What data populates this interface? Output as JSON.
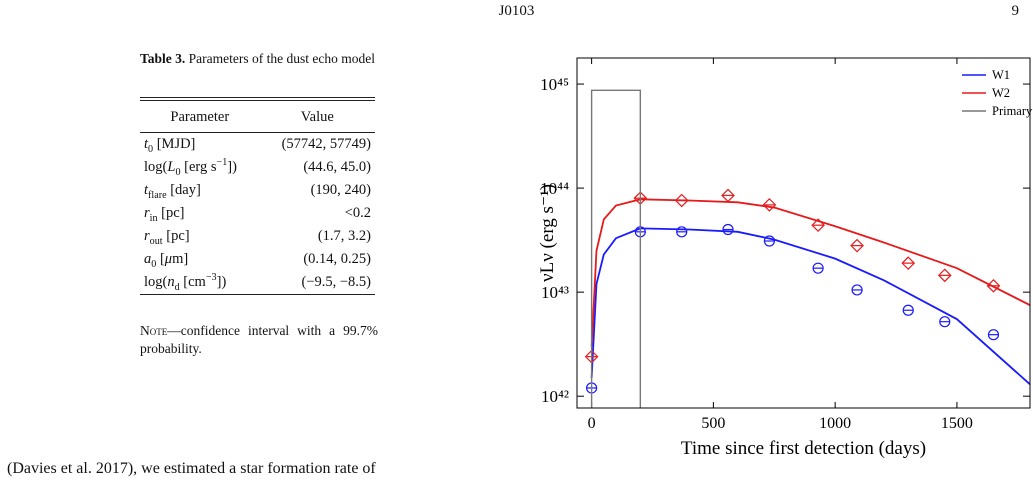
{
  "header": {
    "title": "J0103",
    "page": "9"
  },
  "table": {
    "caption": [
      {
        "text": "Table 3.",
        "style": "bold"
      },
      {
        "text": " Parameters of the dust echo model"
      }
    ],
    "columns": [
      "Parameter",
      "Value"
    ],
    "rows": [
      [
        [
          {
            "text": "t",
            "style": "italic"
          },
          {
            "text": "0",
            "style": "sub"
          },
          {
            "text": " [MJD]"
          }
        ],
        "(57742, 57749)"
      ],
      [
        [
          {
            "text": "log("
          },
          {
            "text": "L",
            "style": "italic"
          },
          {
            "text": "0",
            "style": "sub"
          },
          {
            "text": " [erg s"
          },
          {
            "text": "−1",
            "style": "sup"
          },
          {
            "text": "])"
          }
        ],
        "(44.6, 45.0)"
      ],
      [
        [
          {
            "text": "t",
            "style": "italic"
          },
          {
            "text": "flare",
            "style": "sub"
          },
          {
            "text": " [day]"
          }
        ],
        "(190, 240)"
      ],
      [
        [
          {
            "text": "r",
            "style": "italic"
          },
          {
            "text": "in",
            "style": "sub"
          },
          {
            "text": " [pc]"
          }
        ],
        "<0.2"
      ],
      [
        [
          {
            "text": "r",
            "style": "italic"
          },
          {
            "text": "out",
            "style": "sub"
          },
          {
            "text": " [pc]"
          }
        ],
        "(1.7, 3.2)"
      ],
      [
        [
          {
            "text": "a",
            "style": "italic"
          },
          {
            "text": "0",
            "style": "sub"
          },
          {
            "text": " ["
          },
          {
            "text": "μ",
            "style": "italic"
          },
          {
            "text": "m]"
          }
        ],
        "(0.14, 0.25)"
      ],
      [
        [
          {
            "text": "log("
          },
          {
            "text": "n",
            "style": "italic"
          },
          {
            "text": "d",
            "style": "sub"
          },
          {
            "text": " [cm"
          },
          {
            "text": "−3",
            "style": "sup"
          },
          {
            "text": "])"
          }
        ],
        "(−9.5, −8.5)"
      ]
    ],
    "note": [
      {
        "text": "Note",
        "style": "small-caps"
      },
      {
        "text": "—confidence interval with a 99.7% probability."
      }
    ]
  },
  "chart_data": {
    "type": "line",
    "xlabel": "Time since first detection (days)",
    "ylabel": "νLν (erg s⁻¹)",
    "xlim": [
      -60,
      1800
    ],
    "xticks": [
      0,
      500,
      1000,
      1500
    ],
    "ylim": [
      7.7e+41,
      1.78e+45
    ],
    "yscale": "log",
    "yticks": [
      {
        "value": 1e+42,
        "label": "10⁴²"
      },
      {
        "value": 1e+43,
        "label": "10⁴³"
      },
      {
        "value": 1e+44,
        "label": "10⁴⁴"
      },
      {
        "value": 1e+45,
        "label": "10⁴⁵"
      }
    ],
    "legend": "upper right",
    "series": [
      {
        "name": "W1",
        "color": "#1a1aff",
        "marker": "circle",
        "x": [
          0,
          20,
          50,
          100,
          200,
          400,
          600,
          750,
          1000,
          1200,
          1500,
          1800
        ],
        "values": [
          1.5e+42,
          1.2e+43,
          2.3e+43,
          3.3e+43,
          4.1e+43,
          4e+43,
          3.8e+43,
          3.2e+43,
          2.1e+43,
          1.3e+43,
          5.5e+42,
          1.3e+42
        ],
        "obs_x": [
          0,
          200,
          370,
          560,
          730,
          930,
          1090,
          1300,
          1450,
          1650
        ],
        "obs_values": [
          1.2e+42,
          3.8e+43,
          3.8e+43,
          4e+43,
          3.1e+43,
          1.7e+43,
          1.05e+43,
          6.7e+42,
          5.2e+42,
          3.9e+42
        ]
      },
      {
        "name": "W2",
        "color": "#e8191a",
        "marker": "diamond",
        "x": [
          0,
          20,
          50,
          100,
          200,
          400,
          600,
          750,
          1000,
          1200,
          1500,
          1800
        ],
        "values": [
          3e+42,
          2.5e+43,
          5e+43,
          6.8e+43,
          7.8e+43,
          7.6e+43,
          7.3e+43,
          6.5e+43,
          4.3e+43,
          3e+43,
          1.7e+43,
          7.5e+42
        ],
        "obs_x": [
          0,
          200,
          370,
          560,
          730,
          930,
          1090,
          1300,
          1450,
          1650
        ],
        "obs_values": [
          2.4e+42,
          8e+43,
          7.6e+43,
          8.5e+43,
          6.9e+43,
          4.4e+43,
          2.8e+43,
          1.9e+43,
          1.45e+43,
          1.15e+43
        ]
      },
      {
        "name": "Primary",
        "color": "#777777",
        "x": [
          0,
          0,
          200,
          200
        ],
        "values": [
          1e+41,
          8.7e+44,
          8.7e+44,
          1e+41
        ]
      }
    ]
  },
  "body": {
    "text": "(Davies et al. 2017), we estimated a star formation rate of"
  }
}
